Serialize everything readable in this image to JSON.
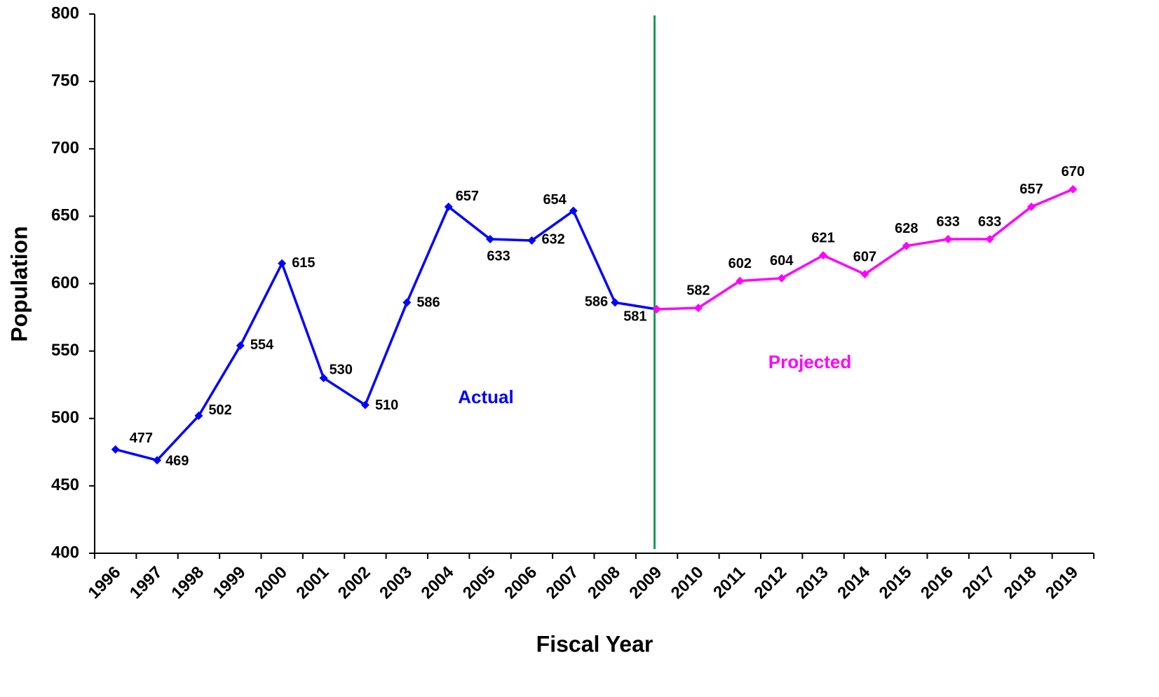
{
  "chart_data": {
    "type": "line",
    "x_label": "Fiscal Year",
    "y_label": "Population",
    "categories": [
      "1996",
      "1997",
      "1998",
      "1999",
      "2000",
      "2001",
      "2002",
      "2003",
      "2004",
      "2005",
      "2006",
      "2007",
      "2008",
      "2009",
      "2010",
      "2011",
      "2012",
      "2013",
      "2014",
      "2015",
      "2016",
      "2017",
      "2018",
      "2019"
    ],
    "series": [
      {
        "name": "Actual",
        "color": "#0000ff",
        "values": [
          477,
          469,
          502,
          554,
          615,
          530,
          510,
          586,
          657,
          633,
          632,
          654,
          586,
          581,
          null,
          null,
          null,
          null,
          null,
          null,
          null,
          null,
          null,
          null
        ]
      },
      {
        "name": "Projected",
        "color": "#ff00ff",
        "values": [
          null,
          null,
          null,
          null,
          null,
          null,
          null,
          null,
          null,
          null,
          null,
          null,
          null,
          581,
          582,
          602,
          604,
          621,
          607,
          628,
          633,
          633,
          657,
          670
        ]
      }
    ],
    "divider_color": "#1e9a50",
    "ylim": [
      400,
      800
    ],
    "yticks": [
      400,
      450,
      500,
      550,
      600,
      650,
      700,
      750,
      800
    ]
  }
}
